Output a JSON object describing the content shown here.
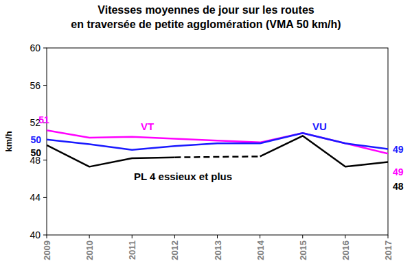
{
  "chart_data": {
    "type": "line",
    "title": "Vitesses moyennes de jour sur les routes\nen traversée de petite agglomération (VMA 50 km/h)",
    "y_label": "km/h",
    "categories": [
      "2009",
      "2010",
      "2011",
      "2012",
      "2013",
      "2014",
      "2015",
      "2016",
      "2017"
    ],
    "ylim": [
      40,
      60
    ],
    "yticks": [
      40,
      44,
      48,
      52,
      56,
      60
    ],
    "grid": false,
    "data_labels": true,
    "series": [
      {
        "name": "VT",
        "color": "#ff00ff",
        "values": [
          51.2,
          50.4,
          50.5,
          50.3,
          50.1,
          49.9,
          50.9,
          49.8,
          48.7
        ],
        "value_labels": [
          "51",
          null,
          null,
          null,
          null,
          null,
          null,
          null,
          "49"
        ]
      },
      {
        "name": "VU",
        "color": "#1a1aff",
        "values": [
          50.2,
          49.7,
          49.1,
          49.5,
          49.8,
          49.8,
          50.9,
          49.8,
          49.2
        ],
        "value_labels": [
          "50",
          null,
          null,
          null,
          null,
          null,
          null,
          null,
          "49"
        ]
      },
      {
        "name": "PL 4 essieux et plus",
        "color": "#000000",
        "values": [
          49.6,
          47.3,
          48.2,
          48.3,
          null,
          48.4,
          50.6,
          47.3,
          47.8
        ],
        "value_labels": [
          "50",
          null,
          null,
          null,
          null,
          null,
          null,
          null,
          "48"
        ]
      }
    ]
  }
}
